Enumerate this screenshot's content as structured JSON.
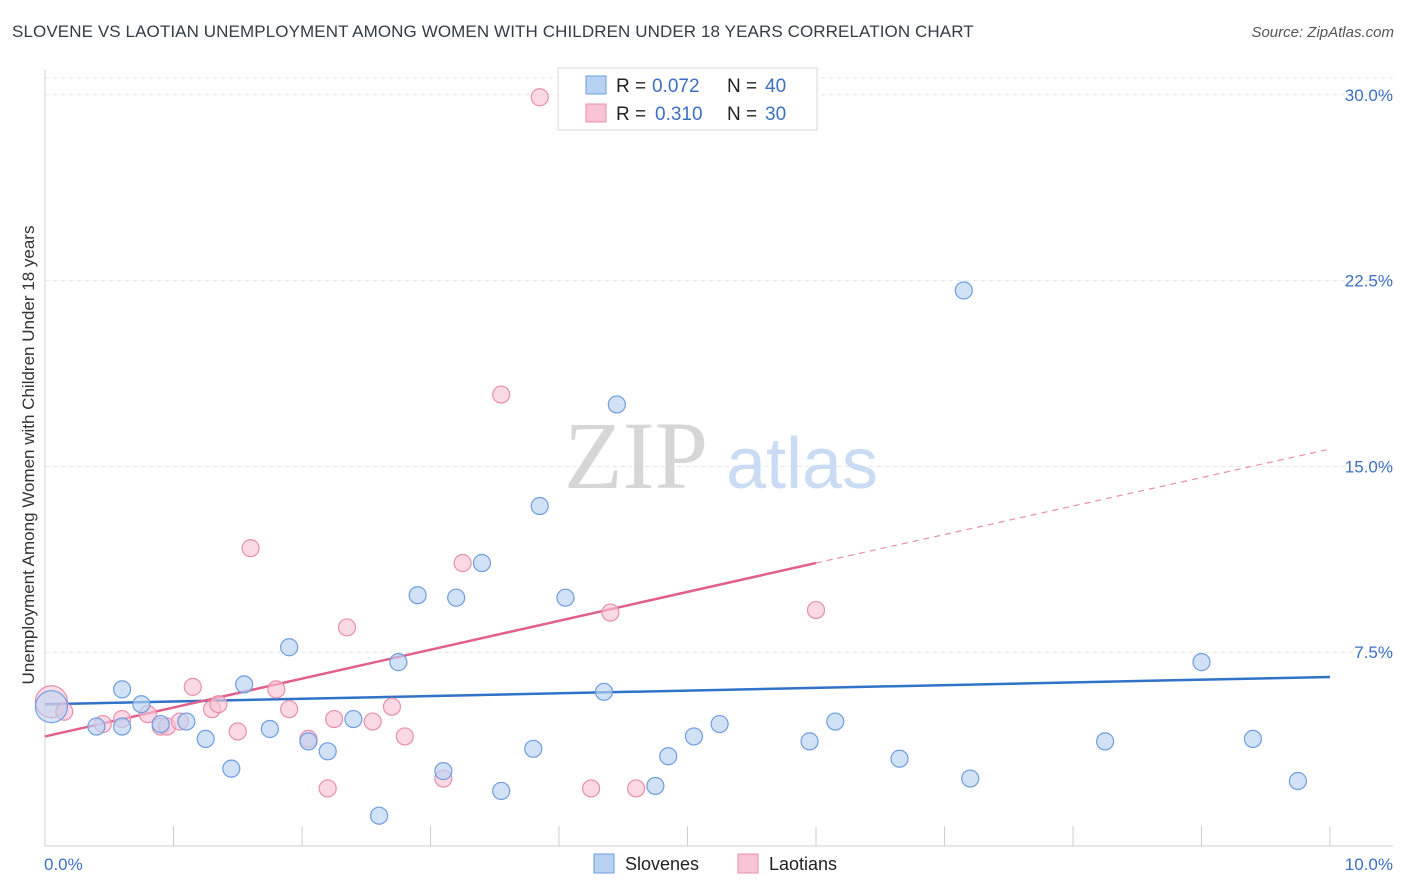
{
  "title": "SLOVENE VS LAOTIAN UNEMPLOYMENT AMONG WOMEN WITH CHILDREN UNDER 18 YEARS CORRELATION CHART",
  "source": "Source: ZipAtlas.com",
  "watermark": {
    "zip": "ZIP",
    "atlas": "atlas"
  },
  "colors": {
    "slovene_fill": "#b8d2f3",
    "slovene_stroke": "#6d9de0",
    "slovene_line": "#2f72c8",
    "laotian_fill": "#f8c4d5",
    "laotian_stroke": "#e98eac",
    "laotian_line": "#e0608c",
    "axis_label": "#3d6fc4",
    "grid": "#e4e4e4"
  },
  "legend": {
    "r_label": "R =",
    "n_label": "N =",
    "rows": [
      {
        "r": "0.072",
        "n": "40"
      },
      {
        "r": "0.310",
        "n": "30"
      }
    ]
  },
  "chart_data": {
    "type": "scatter",
    "title": "SLOVENE VS LAOTIAN UNEMPLOYMENT AMONG WOMEN WITH CHILDREN UNDER 18 YEARS CORRELATION CHART",
    "xlabel": "",
    "ylabel": "Unemployment Among Women with Children Under 18 years",
    "xlim": [
      0,
      10
    ],
    "ylim": [
      0,
      31
    ],
    "x_tick_labels": [
      "0.0%",
      "10.0%"
    ],
    "y_ticks": [
      7.5,
      15.0,
      22.5,
      30.0
    ],
    "y_tick_labels": [
      "7.5%",
      "15.0%",
      "22.5%",
      "30.0%"
    ],
    "grid": true,
    "legend_position": "bottom-center",
    "series": [
      {
        "name": "Slovenes",
        "points": [
          [
            0.05,
            5.3
          ],
          [
            0.4,
            4.5
          ],
          [
            0.6,
            4.5
          ],
          [
            0.6,
            6.0
          ],
          [
            0.75,
            5.4
          ],
          [
            0.9,
            4.6
          ],
          [
            1.1,
            4.7
          ],
          [
            1.25,
            4.0
          ],
          [
            1.45,
            2.8
          ],
          [
            1.55,
            6.2
          ],
          [
            1.75,
            4.4
          ],
          [
            1.9,
            7.7
          ],
          [
            2.05,
            3.9
          ],
          [
            2.2,
            3.5
          ],
          [
            2.4,
            4.8
          ],
          [
            2.6,
            0.9
          ],
          [
            2.75,
            7.1
          ],
          [
            2.9,
            9.8
          ],
          [
            3.1,
            2.7
          ],
          [
            3.2,
            9.7
          ],
          [
            3.4,
            11.1
          ],
          [
            3.55,
            1.9
          ],
          [
            3.8,
            3.6
          ],
          [
            3.85,
            13.4
          ],
          [
            4.05,
            9.7
          ],
          [
            4.35,
            5.9
          ],
          [
            4.45,
            17.5
          ],
          [
            4.75,
            2.1
          ],
          [
            4.85,
            3.3
          ],
          [
            5.05,
            4.1
          ],
          [
            5.25,
            4.6
          ],
          [
            5.95,
            3.9
          ],
          [
            6.15,
            4.7
          ],
          [
            6.65,
            3.2
          ],
          [
            7.15,
            22.1
          ],
          [
            7.2,
            2.4
          ],
          [
            8.25,
            3.9
          ],
          [
            9.0,
            7.1
          ],
          [
            9.4,
            4.0
          ],
          [
            9.75,
            2.3
          ]
        ],
        "trend": {
          "x": [
            0,
            10
          ],
          "y": [
            5.4,
            6.5
          ]
        }
      },
      {
        "name": "Laotians",
        "points": [
          [
            0.05,
            5.5
          ],
          [
            0.15,
            5.1
          ],
          [
            0.45,
            4.6
          ],
          [
            0.6,
            4.8
          ],
          [
            0.8,
            5.0
          ],
          [
            0.9,
            4.5
          ],
          [
            0.95,
            4.5
          ],
          [
            1.05,
            4.7
          ],
          [
            1.15,
            6.1
          ],
          [
            1.3,
            5.2
          ],
          [
            1.35,
            5.4
          ],
          [
            1.5,
            4.3
          ],
          [
            1.6,
            11.7
          ],
          [
            1.8,
            6.0
          ],
          [
            1.9,
            5.2
          ],
          [
            2.05,
            4.0
          ],
          [
            2.2,
            2.0
          ],
          [
            2.25,
            4.8
          ],
          [
            2.35,
            8.5
          ],
          [
            2.55,
            4.7
          ],
          [
            2.7,
            5.3
          ],
          [
            2.8,
            4.1
          ],
          [
            3.1,
            2.4
          ],
          [
            3.25,
            11.1
          ],
          [
            3.55,
            17.9
          ],
          [
            3.85,
            29.9
          ],
          [
            4.25,
            2.0
          ],
          [
            4.4,
            9.1
          ],
          [
            4.6,
            2.0
          ],
          [
            6.0,
            9.2
          ]
        ],
        "trend": {
          "x": [
            0,
            6.0
          ],
          "y": [
            4.1,
            11.1
          ]
        },
        "trend_extension": {
          "x": [
            6.0,
            10
          ],
          "y": [
            11.1,
            15.7
          ]
        }
      }
    ]
  }
}
